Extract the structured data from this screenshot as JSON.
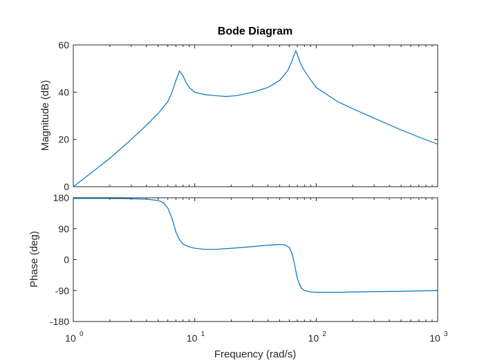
{
  "chart_data": {
    "type": "line",
    "title": "Bode Diagram",
    "xlabel": "Frequency  (rad/s)",
    "x_scale": "log",
    "xlim": [
      1,
      1000
    ],
    "x_ticks": [
      {
        "base": "10",
        "exp": "0"
      },
      {
        "base": "10",
        "exp": "1"
      },
      {
        "base": "10",
        "exp": "2"
      },
      {
        "base": "10",
        "exp": "3"
      }
    ],
    "line_color": "#0072BD",
    "panels": [
      {
        "id": "magnitude",
        "ylabel": "Magnitude (dB)",
        "ylim": [
          0,
          60
        ],
        "y_tick_labels": [
          "0",
          "20",
          "40",
          "60"
        ],
        "series": [
          {
            "x": [
              1,
              1.5,
              2,
              3,
              4,
              5,
              6,
              6.5,
              7,
              7.5,
              8,
              8.5,
              9,
              10,
              12,
              15,
              18,
              22,
              30,
              40,
              50,
              58,
              63,
              66,
              68,
              70,
              73,
              78,
              85,
              100,
              150,
              200,
              300,
              500,
              700,
              1000
            ],
            "y": [
              0,
              7,
              12,
              20,
              26,
              31,
              36,
              40,
              45,
              49,
              47,
              44,
              42,
              40,
              39,
              38.5,
              38.2,
              38.5,
              40,
              42,
              45,
              49,
              53,
              56,
              57.5,
              56,
              53,
              50,
              47,
              42,
              36,
              33,
              29,
              24,
              21,
              18
            ]
          }
        ]
      },
      {
        "id": "phase",
        "ylabel": "Phase (deg)",
        "ylim": [
          -180,
          180
        ],
        "y_tick_labels": [
          "-180",
          "-90",
          "0",
          "90",
          "180"
        ],
        "series": [
          {
            "x": [
              1,
              2,
              3,
              4,
              5,
              5.5,
              6,
              6.5,
              7,
              7.5,
              8,
              9,
              10,
              12,
              15,
              20,
              30,
              40,
              50,
              55,
              60,
              63,
              66,
              70,
              75,
              80,
              90,
              100,
              150,
              200,
              300,
              500,
              1000
            ],
            "y": [
              178,
              178,
              177,
              176,
              172,
              166,
              150,
              120,
              80,
              58,
              45,
              37,
              33,
              30,
              30,
              33,
              38,
              42,
              44,
              43,
              35,
              20,
              -10,
              -55,
              -82,
              -90,
              -94,
              -95,
              -95,
              -94,
              -93,
              -92,
              -90
            ]
          }
        ]
      }
    ]
  }
}
